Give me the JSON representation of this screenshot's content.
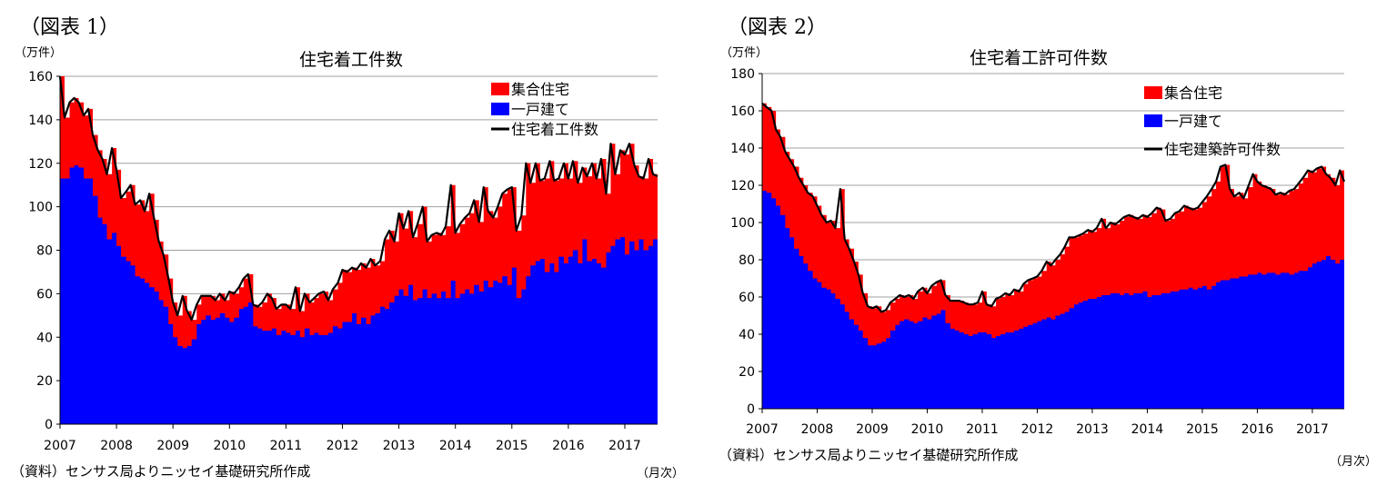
{
  "figures": [
    {
      "label": "（図表 1）",
      "source": "（資料）センサス局よりニッセイ基礎研究所作成",
      "freq": "（月次）"
    },
    {
      "label": "（図表 2）",
      "source": "（資料）センサス局よりニッセイ基礎研究所作成",
      "freq": "（月次）"
    }
  ],
  "colors": {
    "multi": "#ff0000",
    "single": "#0000ff",
    "total": "#000000",
    "grid": "#a0a0a0"
  },
  "chart_data": [
    {
      "type": "area",
      "title": "住宅着工件数",
      "unit": "（万件）",
      "ylim": [
        0,
        160
      ],
      "yticks": [
        0,
        20,
        40,
        60,
        80,
        100,
        120,
        140,
        160
      ],
      "xticks": [
        "2007",
        "2008",
        "2009",
        "2010",
        "2011",
        "2012",
        "2013",
        "2014",
        "2015",
        "2016",
        "2017"
      ],
      "x_start": 2007.0,
      "x_end": 2017.58,
      "grid": true,
      "legend_position": "top-right",
      "series": [
        {
          "name": "集合住宅",
          "key": "multi"
        },
        {
          "name": "一戸建て",
          "key": "single"
        },
        {
          "name": "住宅着工件数",
          "key": "total"
        }
      ],
      "points": [
        [
          2007.0,
          113,
          160
        ],
        [
          2007.08,
          113,
          141
        ],
        [
          2007.17,
          118,
          148
        ],
        [
          2007.25,
          119,
          150
        ],
        [
          2007.33,
          118,
          148
        ],
        [
          2007.42,
          113,
          142
        ],
        [
          2007.5,
          113,
          145
        ],
        [
          2007.58,
          105,
          133
        ],
        [
          2007.67,
          95,
          126
        ],
        [
          2007.75,
          92,
          122
        ],
        [
          2007.83,
          85,
          115
        ],
        [
          2007.92,
          88,
          127
        ],
        [
          2008.0,
          82,
          117
        ],
        [
          2008.08,
          77,
          104
        ],
        [
          2008.17,
          75,
          107
        ],
        [
          2008.25,
          73,
          110
        ],
        [
          2008.33,
          68,
          101
        ],
        [
          2008.42,
          67,
          103
        ],
        [
          2008.5,
          65,
          98
        ],
        [
          2008.58,
          63,
          106
        ],
        [
          2008.67,
          61,
          94
        ],
        [
          2008.75,
          57,
          84
        ],
        [
          2008.83,
          54,
          78
        ],
        [
          2008.92,
          46,
          67
        ],
        [
          2009.0,
          40,
          56
        ],
        [
          2009.08,
          36,
          50
        ],
        [
          2009.17,
          35,
          59
        ],
        [
          2009.25,
          36,
          52
        ],
        [
          2009.33,
          39,
          48
        ],
        [
          2009.42,
          46,
          55
        ],
        [
          2009.5,
          48,
          59
        ],
        [
          2009.58,
          50,
          59
        ],
        [
          2009.67,
          48,
          59
        ],
        [
          2009.75,
          49,
          57
        ],
        [
          2009.83,
          51,
          60
        ],
        [
          2009.92,
          49,
          57
        ],
        [
          2010.0,
          47,
          61
        ],
        [
          2010.08,
          49,
          60
        ],
        [
          2010.17,
          53,
          63
        ],
        [
          2010.25,
          54,
          67
        ],
        [
          2010.33,
          56,
          69
        ],
        [
          2010.42,
          45,
          55
        ],
        [
          2010.5,
          44,
          54
        ],
        [
          2010.58,
          43,
          56
        ],
        [
          2010.67,
          43,
          60
        ],
        [
          2010.75,
          44,
          58
        ],
        [
          2010.83,
          41,
          53
        ],
        [
          2010.92,
          43,
          55
        ],
        [
          2011.0,
          42,
          55
        ],
        [
          2011.08,
          41,
          53
        ],
        [
          2011.17,
          43,
          63
        ],
        [
          2011.25,
          40,
          52
        ],
        [
          2011.33,
          44,
          60
        ],
        [
          2011.42,
          41,
          56
        ],
        [
          2011.5,
          42,
          58
        ],
        [
          2011.58,
          41,
          60
        ],
        [
          2011.67,
          41,
          61
        ],
        [
          2011.75,
          42,
          57
        ],
        [
          2011.83,
          45,
          62
        ],
        [
          2011.92,
          44,
          65
        ],
        [
          2012.0,
          47,
          71
        ],
        [
          2012.08,
          47,
          70
        ],
        [
          2012.17,
          51,
          72
        ],
        [
          2012.25,
          46,
          71
        ],
        [
          2012.33,
          49,
          74
        ],
        [
          2012.42,
          46,
          72
        ],
        [
          2012.5,
          50,
          76
        ],
        [
          2012.58,
          51,
          73
        ],
        [
          2012.67,
          54,
          75
        ],
        [
          2012.75,
          53,
          85
        ],
        [
          2012.83,
          56,
          89
        ],
        [
          2012.92,
          59,
          84
        ],
        [
          2013.0,
          62,
          97
        ],
        [
          2013.08,
          59,
          90
        ],
        [
          2013.17,
          64,
          98
        ],
        [
          2013.25,
          57,
          86
        ],
        [
          2013.33,
          58,
          92
        ],
        [
          2013.42,
          62,
          100
        ],
        [
          2013.5,
          58,
          84
        ],
        [
          2013.58,
          60,
          87
        ],
        [
          2013.67,
          58,
          88
        ],
        [
          2013.75,
          61,
          87
        ],
        [
          2013.83,
          58,
          91
        ],
        [
          2013.92,
          66,
          110
        ],
        [
          2014.0,
          58,
          88
        ],
        [
          2014.08,
          60,
          92
        ],
        [
          2014.17,
          62,
          95
        ],
        [
          2014.25,
          60,
          97
        ],
        [
          2014.33,
          64,
          103
        ],
        [
          2014.42,
          61,
          93
        ],
        [
          2014.5,
          66,
          109
        ],
        [
          2014.58,
          63,
          98
        ],
        [
          2014.67,
          66,
          95
        ],
        [
          2014.75,
          65,
          100
        ],
        [
          2014.83,
          68,
          106
        ],
        [
          2014.92,
          64,
          108
        ],
        [
          2015.0,
          72,
          109
        ],
        [
          2015.08,
          58,
          89
        ],
        [
          2015.17,
          62,
          96
        ],
        [
          2015.25,
          68,
          120
        ],
        [
          2015.33,
          73,
          111
        ],
        [
          2015.42,
          75,
          120
        ],
        [
          2015.5,
          76,
          112
        ],
        [
          2015.58,
          70,
          113
        ],
        [
          2015.67,
          74,
          121
        ],
        [
          2015.75,
          70,
          112
        ],
        [
          2015.83,
          77,
          113
        ],
        [
          2015.92,
          74,
          120
        ],
        [
          2016.0,
          77,
          113
        ],
        [
          2016.08,
          80,
          121
        ],
        [
          2016.17,
          74,
          111
        ],
        [
          2016.25,
          85,
          118
        ],
        [
          2016.33,
          75,
          114
        ],
        [
          2016.42,
          76,
          120
        ],
        [
          2016.5,
          74,
          113
        ],
        [
          2016.58,
          72,
          122
        ],
        [
          2016.67,
          79,
          106
        ],
        [
          2016.75,
          82,
          129
        ],
        [
          2016.83,
          85,
          115
        ],
        [
          2016.92,
          86,
          126
        ],
        [
          2017.0,
          78,
          124
        ],
        [
          2017.08,
          84,
          129
        ],
        [
          2017.17,
          80,
          119
        ],
        [
          2017.25,
          85,
          114
        ],
        [
          2017.33,
          80,
          113
        ],
        [
          2017.42,
          82,
          122
        ],
        [
          2017.5,
          85,
          115
        ],
        [
          2017.58,
          85,
          114
        ]
      ]
    },
    {
      "type": "area",
      "title": "住宅着工許可件数",
      "unit": "（万件）",
      "ylim": [
        0,
        180
      ],
      "yticks": [
        0,
        20,
        40,
        60,
        80,
        100,
        120,
        140,
        160,
        180
      ],
      "xticks": [
        "2007",
        "2008",
        "2009",
        "2010",
        "2011",
        "2012",
        "2013",
        "2014",
        "2015",
        "2016",
        "2017"
      ],
      "x_start": 2007.0,
      "x_end": 2017.58,
      "grid": true,
      "legend_position": "top-right",
      "series": [
        {
          "name": "集合住宅",
          "key": "multi"
        },
        {
          "name": "一戸建て",
          "key": "single"
        },
        {
          "name": "住宅建築許可件数",
          "key": "total"
        }
      ],
      "points": [
        [
          2007.0,
          117,
          164
        ],
        [
          2007.08,
          116,
          162
        ],
        [
          2007.17,
          113,
          160
        ],
        [
          2007.25,
          109,
          150
        ],
        [
          2007.33,
          104,
          146
        ],
        [
          2007.42,
          97,
          138
        ],
        [
          2007.5,
          92,
          134
        ],
        [
          2007.58,
          86,
          130
        ],
        [
          2007.67,
          82,
          124
        ],
        [
          2007.75,
          78,
          120
        ],
        [
          2007.83,
          74,
          116
        ],
        [
          2007.92,
          70,
          114
        ],
        [
          2008.0,
          68,
          109
        ],
        [
          2008.08,
          65,
          104
        ],
        [
          2008.17,
          64,
          100
        ],
        [
          2008.25,
          62,
          101
        ],
        [
          2008.33,
          59,
          97
        ],
        [
          2008.42,
          56,
          118
        ],
        [
          2008.5,
          52,
          91
        ],
        [
          2008.58,
          48,
          86
        ],
        [
          2008.67,
          45,
          79
        ],
        [
          2008.75,
          42,
          72
        ],
        [
          2008.83,
          38,
          62
        ],
        [
          2008.92,
          34,
          55
        ],
        [
          2009.0,
          34,
          54
        ],
        [
          2009.08,
          35,
          55
        ],
        [
          2009.17,
          36,
          52
        ],
        [
          2009.25,
          38,
          53
        ],
        [
          2009.33,
          42,
          57
        ],
        [
          2009.42,
          45,
          59
        ],
        [
          2009.5,
          47,
          61
        ],
        [
          2009.58,
          48,
          60
        ],
        [
          2009.67,
          47,
          61
        ],
        [
          2009.75,
          46,
          59
        ],
        [
          2009.83,
          47,
          63
        ],
        [
          2009.92,
          49,
          65
        ],
        [
          2010.0,
          48,
          62
        ],
        [
          2010.08,
          50,
          66
        ],
        [
          2010.17,
          51,
          68
        ],
        [
          2010.25,
          53,
          69
        ],
        [
          2010.33,
          46,
          61
        ],
        [
          2010.42,
          43,
          58
        ],
        [
          2010.5,
          42,
          58
        ],
        [
          2010.58,
          41,
          58
        ],
        [
          2010.67,
          40,
          57
        ],
        [
          2010.75,
          39,
          56
        ],
        [
          2010.83,
          40,
          56
        ],
        [
          2010.92,
          41,
          57
        ],
        [
          2011.0,
          41,
          63
        ],
        [
          2011.08,
          40,
          56
        ],
        [
          2011.17,
          38,
          55
        ],
        [
          2011.25,
          39,
          59
        ],
        [
          2011.33,
          40,
          60
        ],
        [
          2011.42,
          41,
          62
        ],
        [
          2011.5,
          41,
          61
        ],
        [
          2011.58,
          42,
          64
        ],
        [
          2011.67,
          43,
          63
        ],
        [
          2011.75,
          44,
          67
        ],
        [
          2011.83,
          45,
          69
        ],
        [
          2011.92,
          46,
          70
        ],
        [
          2012.0,
          47,
          71
        ],
        [
          2012.08,
          48,
          74
        ],
        [
          2012.17,
          49,
          79
        ],
        [
          2012.25,
          48,
          77
        ],
        [
          2012.33,
          50,
          80
        ],
        [
          2012.42,
          51,
          83
        ],
        [
          2012.5,
          52,
          87
        ],
        [
          2012.58,
          54,
          92
        ],
        [
          2012.67,
          56,
          92
        ],
        [
          2012.75,
          57,
          93
        ],
        [
          2012.83,
          58,
          94
        ],
        [
          2012.92,
          59,
          96
        ],
        [
          2013.0,
          59,
          95
        ],
        [
          2013.08,
          60,
          97
        ],
        [
          2013.17,
          61,
          102
        ],
        [
          2013.25,
          61,
          97
        ],
        [
          2013.33,
          62,
          100
        ],
        [
          2013.42,
          62,
          99
        ],
        [
          2013.5,
          61,
          101
        ],
        [
          2013.58,
          62,
          103
        ],
        [
          2013.67,
          61,
          104
        ],
        [
          2013.75,
          62,
          103
        ],
        [
          2013.83,
          62,
          102
        ],
        [
          2013.92,
          63,
          104
        ],
        [
          2014.0,
          60,
          103
        ],
        [
          2014.08,
          61,
          105
        ],
        [
          2014.17,
          61,
          108
        ],
        [
          2014.25,
          62,
          107
        ],
        [
          2014.33,
          62,
          101
        ],
        [
          2014.42,
          63,
          102
        ],
        [
          2014.5,
          63,
          105
        ],
        [
          2014.58,
          64,
          106
        ],
        [
          2014.67,
          64,
          109
        ],
        [
          2014.75,
          65,
          108
        ],
        [
          2014.83,
          64,
          107
        ],
        [
          2014.92,
          65,
          108
        ],
        [
          2015.0,
          66,
          111
        ],
        [
          2015.08,
          64,
          114
        ],
        [
          2015.17,
          66,
          118
        ],
        [
          2015.25,
          68,
          122
        ],
        [
          2015.33,
          69,
          130
        ],
        [
          2015.42,
          69,
          131
        ],
        [
          2015.5,
          70,
          118
        ],
        [
          2015.58,
          70,
          114
        ],
        [
          2015.67,
          71,
          116
        ],
        [
          2015.75,
          71,
          113
        ],
        [
          2015.83,
          72,
          119
        ],
        [
          2015.92,
          72,
          126
        ],
        [
          2016.0,
          73,
          122
        ],
        [
          2016.08,
          72,
          120
        ],
        [
          2016.17,
          73,
          119
        ],
        [
          2016.25,
          73,
          118
        ],
        [
          2016.33,
          72,
          115
        ],
        [
          2016.42,
          73,
          116
        ],
        [
          2016.5,
          73,
          115
        ],
        [
          2016.58,
          72,
          117
        ],
        [
          2016.67,
          73,
          118
        ],
        [
          2016.75,
          74,
          121
        ],
        [
          2016.83,
          74,
          124
        ],
        [
          2016.92,
          76,
          128
        ],
        [
          2017.0,
          78,
          127
        ],
        [
          2017.08,
          79,
          129
        ],
        [
          2017.17,
          80,
          130
        ],
        [
          2017.25,
          82,
          126
        ],
        [
          2017.33,
          80,
          124
        ],
        [
          2017.42,
          78,
          120
        ],
        [
          2017.5,
          80,
          128
        ],
        [
          2017.58,
          80,
          122
        ]
      ]
    }
  ]
}
